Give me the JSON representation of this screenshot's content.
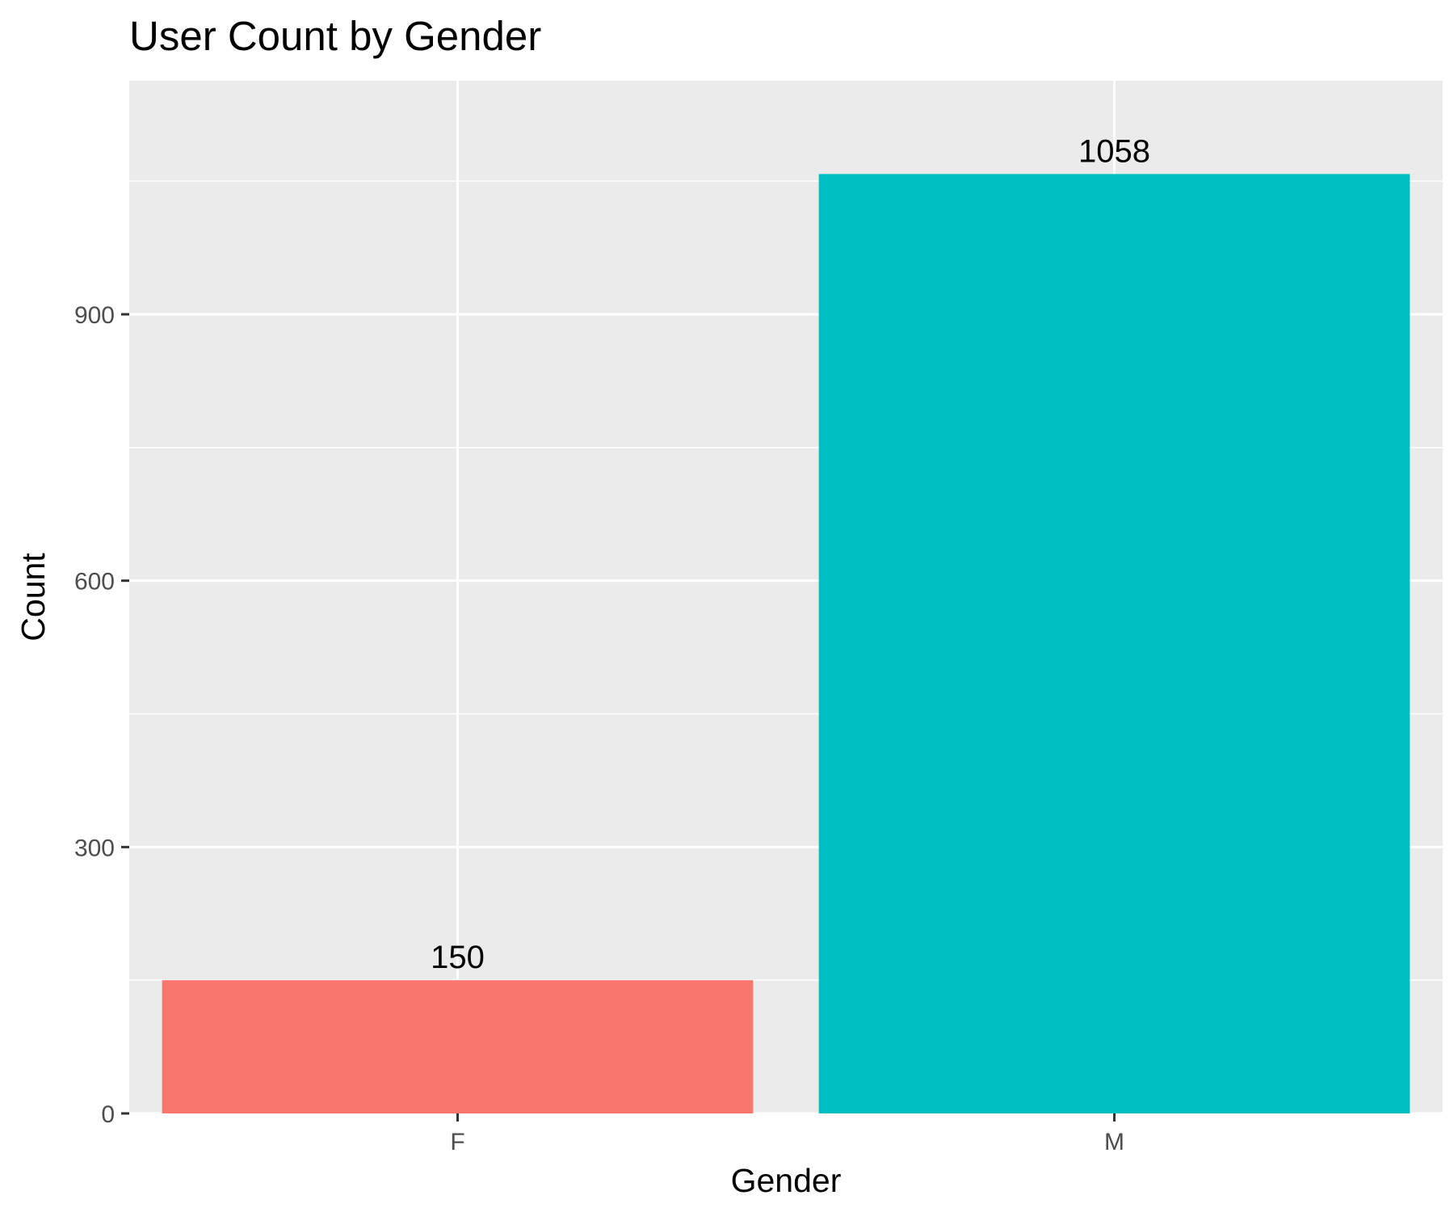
{
  "chart_data": {
    "type": "bar",
    "title": "User Count by Gender",
    "xlabel": "Gender",
    "ylabel": "Count",
    "categories": [
      "F",
      "M"
    ],
    "values": [
      150,
      1058
    ],
    "data_labels": [
      "150",
      "1058"
    ],
    "bar_colors": [
      "#F8766D",
      "#00BFC4"
    ],
    "ylim": [
      0,
      1163
    ],
    "y_ticks": [
      0,
      300,
      600,
      900
    ],
    "y_tick_labels": [
      "0",
      "300",
      "600",
      "900"
    ],
    "grid": true,
    "legend": "none",
    "panel_background": "#EBEBEB",
    "grid_color": "#FFFFFF"
  }
}
